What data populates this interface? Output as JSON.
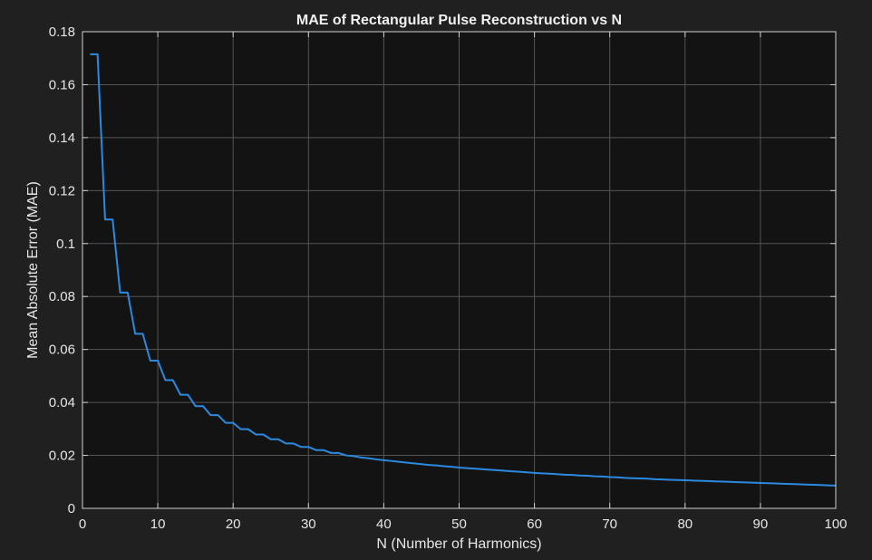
{
  "chart_data": {
    "type": "line",
    "title": "MAE of Rectangular Pulse Reconstruction vs N",
    "xlabel": "N (Number of Harmonics)",
    "ylabel": "Mean Absolute Error (MAE)",
    "xlim": [
      0,
      100
    ],
    "ylim": [
      0,
      0.18
    ],
    "xticks": [
      0,
      10,
      20,
      30,
      40,
      50,
      60,
      70,
      80,
      90,
      100
    ],
    "yticks": [
      0,
      0.02,
      0.04,
      0.06,
      0.08,
      0.1,
      0.12,
      0.14,
      0.16,
      0.18
    ],
    "xtick_labels": [
      "0",
      "10",
      "20",
      "30",
      "40",
      "50",
      "60",
      "70",
      "80",
      "90",
      "100"
    ],
    "ytick_labels": [
      "0",
      "0.02",
      "0.04",
      "0.06",
      "0.08",
      "0.1",
      "0.12",
      "0.14",
      "0.16",
      "0.18"
    ],
    "grid": true,
    "series": [
      {
        "color": "#2b8ae0",
        "x": [
          1,
          2,
          3,
          4,
          5,
          6,
          7,
          8,
          9,
          10,
          11,
          12,
          13,
          14,
          15,
          16,
          17,
          18,
          19,
          20,
          21,
          22,
          23,
          24,
          25,
          26,
          27,
          28,
          29,
          30,
          31,
          32,
          33,
          34,
          35,
          36,
          37,
          38,
          39,
          40,
          41,
          42,
          43,
          44,
          45,
          46,
          47,
          48,
          49,
          50,
          51,
          52,
          53,
          54,
          55,
          56,
          57,
          58,
          59,
          60,
          61,
          62,
          63,
          64,
          65,
          66,
          67,
          68,
          69,
          70,
          71,
          72,
          73,
          74,
          75,
          76,
          77,
          78,
          79,
          80,
          81,
          82,
          83,
          84,
          85,
          86,
          87,
          88,
          89,
          90,
          91,
          92,
          93,
          94,
          95,
          96,
          97,
          98,
          99,
          100
        ],
        "values": [
          0.1715,
          0.1715,
          0.1091,
          0.1091,
          0.0815,
          0.0815,
          0.0659,
          0.0659,
          0.0558,
          0.0558,
          0.0484,
          0.0484,
          0.0429,
          0.0429,
          0.0386,
          0.0386,
          0.0352,
          0.0352,
          0.0323,
          0.0323,
          0.0299,
          0.0299,
          0.0279,
          0.0279,
          0.0261,
          0.0261,
          0.0245,
          0.0245,
          0.0232,
          0.0232,
          0.022,
          0.022,
          0.0209,
          0.0209,
          0.02,
          0.0197,
          0.0192,
          0.0189,
          0.0185,
          0.0182,
          0.0179,
          0.0176,
          0.0173,
          0.017,
          0.0167,
          0.0164,
          0.0162,
          0.0159,
          0.0157,
          0.0154,
          0.0152,
          0.015,
          0.0148,
          0.0146,
          0.0144,
          0.0142,
          0.014,
          0.0138,
          0.0136,
          0.0134,
          0.0132,
          0.0131,
          0.0129,
          0.0127,
          0.0126,
          0.0124,
          0.0123,
          0.0121,
          0.012,
          0.0118,
          0.0117,
          0.0115,
          0.0114,
          0.0113,
          0.0112,
          0.011,
          0.0109,
          0.0108,
          0.0107,
          0.0106,
          0.0105,
          0.0104,
          0.0103,
          0.0102,
          0.0101,
          0.01,
          0.0099,
          0.0098,
          0.0097,
          0.0096,
          0.0095,
          0.0094,
          0.0093,
          0.0092,
          0.0091,
          0.009,
          0.0089,
          0.0088,
          0.0087,
          0.0086
        ]
      }
    ]
  },
  "colors": {
    "figure_background": "#202020",
    "axes_background": "#131313",
    "grid": "#555555",
    "axis": "#cfcfcf",
    "text": "#e6e6e6",
    "line": "#2b8ae0"
  }
}
